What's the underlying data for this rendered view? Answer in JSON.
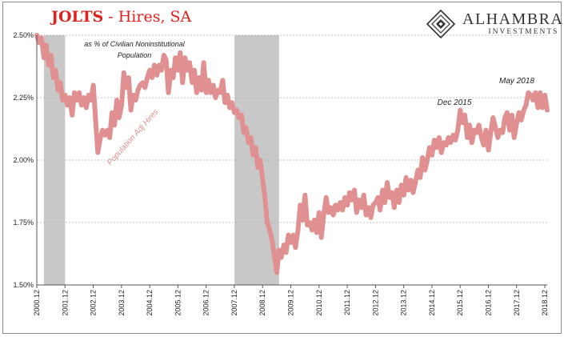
{
  "header": {
    "title_main": "JOLTS",
    "title_rest": " - Hires, SA",
    "brand_name": "ALHAMBRA",
    "brand_sub": "INVESTMENTS"
  },
  "colors": {
    "series": "#e09090",
    "recession": "#c8c8c8",
    "title_red": "#e0201b",
    "grid": "#b0b0b0"
  },
  "chart_data": {
    "type": "line",
    "subtitle": "as % of Civilian Noninstitutional Population",
    "subtitle_lines": [
      "as % of Civilian Noninstitutional",
      "Population"
    ],
    "y_ticks": [
      "2.50%",
      "2.25%",
      "2.00%",
      "1.75%",
      "1.50%"
    ],
    "y_tick_values": [
      2.5,
      2.25,
      2.0,
      1.75,
      1.5
    ],
    "ylim": [
      1.5,
      2.5
    ],
    "xlim": [
      2000.917,
      2019.0
    ],
    "x_ticks": [
      "2000.12",
      "2001.12",
      "2002.12",
      "2003.12",
      "2004.12",
      "2005.12",
      "2006.12",
      "2007.12",
      "2008.12",
      "2009.12",
      "2010.12",
      "2011.12",
      "2012.12",
      "2013.12",
      "2014.12",
      "2015.12",
      "2016.12",
      "2017.12",
      "2018.12"
    ],
    "grid": "horizontal dashed",
    "annotations": [
      "Population Adj Hires",
      "Dec 2015",
      "May 2018"
    ],
    "recessions": [
      [
        2001.17,
        2001.92
      ],
      [
        2007.92,
        2009.5
      ]
    ],
    "series": [
      {
        "name": "Population Adj Hires",
        "points": [
          [
            2000.92,
            2.5
          ],
          [
            2001.0,
            2.47
          ],
          [
            2001.08,
            2.49
          ],
          [
            2001.17,
            2.41
          ],
          [
            2001.25,
            2.46
          ],
          [
            2001.33,
            2.38
          ],
          [
            2001.42,
            2.42
          ],
          [
            2001.5,
            2.33
          ],
          [
            2001.58,
            2.36
          ],
          [
            2001.67,
            2.28
          ],
          [
            2001.75,
            2.31
          ],
          [
            2001.83,
            2.24
          ],
          [
            2001.92,
            2.26
          ],
          [
            2002.0,
            2.22
          ],
          [
            2002.08,
            2.25
          ],
          [
            2002.17,
            2.18
          ],
          [
            2002.25,
            2.27
          ],
          [
            2002.33,
            2.24
          ],
          [
            2002.42,
            2.27
          ],
          [
            2002.5,
            2.22
          ],
          [
            2002.58,
            2.25
          ],
          [
            2002.67,
            2.21
          ],
          [
            2002.75,
            2.26
          ],
          [
            2002.83,
            2.24
          ],
          [
            2002.92,
            2.3
          ],
          [
            2003.0,
            2.16
          ],
          [
            2003.08,
            2.03
          ],
          [
            2003.17,
            2.09
          ],
          [
            2003.25,
            2.12
          ],
          [
            2003.33,
            2.1
          ],
          [
            2003.42,
            2.12
          ],
          [
            2003.5,
            2.09
          ],
          [
            2003.58,
            2.19
          ],
          [
            2003.67,
            2.14
          ],
          [
            2003.75,
            2.24
          ],
          [
            2003.83,
            2.17
          ],
          [
            2003.92,
            2.22
          ],
          [
            2004.0,
            2.35
          ],
          [
            2004.08,
            2.29
          ],
          [
            2004.17,
            2.33
          ],
          [
            2004.25,
            2.2
          ],
          [
            2004.33,
            2.26
          ],
          [
            2004.42,
            2.24
          ],
          [
            2004.5,
            2.28
          ],
          [
            2004.58,
            2.3
          ],
          [
            2004.67,
            2.31
          ],
          [
            2004.75,
            2.29
          ],
          [
            2004.83,
            2.33
          ],
          [
            2004.92,
            2.36
          ],
          [
            2005.0,
            2.33
          ],
          [
            2005.08,
            2.38
          ],
          [
            2005.17,
            2.34
          ],
          [
            2005.25,
            2.38
          ],
          [
            2005.33,
            2.36
          ],
          [
            2005.42,
            2.42
          ],
          [
            2005.5,
            2.4
          ],
          [
            2005.58,
            2.27
          ],
          [
            2005.67,
            2.36
          ],
          [
            2005.75,
            2.33
          ],
          [
            2005.83,
            2.41
          ],
          [
            2005.92,
            2.36
          ],
          [
            2006.0,
            2.43
          ],
          [
            2006.08,
            2.31
          ],
          [
            2006.17,
            2.41
          ],
          [
            2006.25,
            2.36
          ],
          [
            2006.33,
            2.39
          ],
          [
            2006.42,
            2.31
          ],
          [
            2006.5,
            2.36
          ],
          [
            2006.58,
            2.27
          ],
          [
            2006.67,
            2.33
          ],
          [
            2006.75,
            2.28
          ],
          [
            2006.83,
            2.39
          ],
          [
            2006.92,
            2.27
          ],
          [
            2007.0,
            2.32
          ],
          [
            2007.08,
            2.27
          ],
          [
            2007.17,
            2.3
          ],
          [
            2007.25,
            2.25
          ],
          [
            2007.33,
            2.28
          ],
          [
            2007.42,
            2.27
          ],
          [
            2007.5,
            2.32
          ],
          [
            2007.58,
            2.23
          ],
          [
            2007.67,
            2.26
          ],
          [
            2007.75,
            2.21
          ],
          [
            2007.83,
            2.23
          ],
          [
            2007.92,
            2.19
          ],
          [
            2008.0,
            2.2
          ],
          [
            2008.08,
            2.17
          ],
          [
            2008.17,
            2.18
          ],
          [
            2008.25,
            2.11
          ],
          [
            2008.33,
            2.13
          ],
          [
            2008.42,
            2.07
          ],
          [
            2008.5,
            2.09
          ],
          [
            2008.58,
            2.02
          ],
          [
            2008.67,
            2.05
          ],
          [
            2008.75,
            1.97
          ],
          [
            2008.83,
            2.0
          ],
          [
            2008.92,
            1.92
          ],
          [
            2009.0,
            1.85
          ],
          [
            2009.08,
            1.75
          ],
          [
            2009.17,
            1.72
          ],
          [
            2009.25,
            1.68
          ],
          [
            2009.33,
            1.62
          ],
          [
            2009.42,
            1.55
          ],
          [
            2009.5,
            1.64
          ],
          [
            2009.58,
            1.61
          ],
          [
            2009.67,
            1.66
          ],
          [
            2009.75,
            1.63
          ],
          [
            2009.83,
            1.7
          ],
          [
            2009.92,
            1.67
          ],
          [
            2010.0,
            1.7
          ],
          [
            2010.08,
            1.65
          ],
          [
            2010.17,
            1.72
          ],
          [
            2010.25,
            1.82
          ],
          [
            2010.33,
            1.76
          ],
          [
            2010.42,
            1.86
          ],
          [
            2010.5,
            1.74
          ],
          [
            2010.58,
            1.75
          ],
          [
            2010.67,
            1.72
          ],
          [
            2010.75,
            1.76
          ],
          [
            2010.83,
            1.71
          ],
          [
            2010.92,
            1.79
          ],
          [
            2011.0,
            1.69
          ],
          [
            2011.08,
            1.78
          ],
          [
            2011.17,
            1.85
          ],
          [
            2011.25,
            1.79
          ],
          [
            2011.33,
            1.81
          ],
          [
            2011.42,
            1.78
          ],
          [
            2011.5,
            1.82
          ],
          [
            2011.58,
            1.8
          ],
          [
            2011.67,
            1.83
          ],
          [
            2011.75,
            1.8
          ],
          [
            2011.83,
            1.85
          ],
          [
            2011.92,
            1.82
          ],
          [
            2012.0,
            1.87
          ],
          [
            2012.08,
            1.84
          ],
          [
            2012.17,
            1.88
          ],
          [
            2012.25,
            1.79
          ],
          [
            2012.33,
            1.84
          ],
          [
            2012.42,
            1.81
          ],
          [
            2012.5,
            1.86
          ],
          [
            2012.58,
            1.78
          ],
          [
            2012.67,
            1.81
          ],
          [
            2012.75,
            1.77
          ],
          [
            2012.83,
            1.82
          ],
          [
            2012.92,
            1.83
          ],
          [
            2013.0,
            1.85
          ],
          [
            2013.08,
            1.8
          ],
          [
            2013.17,
            1.88
          ],
          [
            2013.25,
            1.83
          ],
          [
            2013.33,
            1.91
          ],
          [
            2013.42,
            1.85
          ],
          [
            2013.5,
            1.87
          ],
          [
            2013.58,
            1.81
          ],
          [
            2013.67,
            1.88
          ],
          [
            2013.75,
            1.83
          ],
          [
            2013.83,
            1.9
          ],
          [
            2013.92,
            1.86
          ],
          [
            2014.0,
            1.93
          ],
          [
            2014.08,
            1.88
          ],
          [
            2014.17,
            1.92
          ],
          [
            2014.25,
            1.87
          ],
          [
            2014.33,
            1.91
          ],
          [
            2014.42,
            1.96
          ],
          [
            2014.5,
            1.93
          ],
          [
            2014.58,
            2.01
          ],
          [
            2014.67,
            1.96
          ],
          [
            2014.75,
            2.0
          ],
          [
            2014.83,
            2.05
          ],
          [
            2014.92,
            2.02
          ],
          [
            2015.0,
            2.08
          ],
          [
            2015.08,
            2.05
          ],
          [
            2015.17,
            2.09
          ],
          [
            2015.25,
            2.03
          ],
          [
            2015.33,
            2.07
          ],
          [
            2015.42,
            2.06
          ],
          [
            2015.5,
            2.09
          ],
          [
            2015.58,
            2.07
          ],
          [
            2015.67,
            2.1
          ],
          [
            2015.75,
            2.08
          ],
          [
            2015.83,
            2.12
          ],
          [
            2015.92,
            2.2
          ],
          [
            2016.0,
            2.15
          ],
          [
            2016.08,
            2.18
          ],
          [
            2016.17,
            2.09
          ],
          [
            2016.25,
            2.14
          ],
          [
            2016.33,
            2.07
          ],
          [
            2016.42,
            2.12
          ],
          [
            2016.5,
            2.11
          ],
          [
            2016.58,
            2.14
          ],
          [
            2016.67,
            2.09
          ],
          [
            2016.75,
            2.06
          ],
          [
            2016.83,
            2.12
          ],
          [
            2016.92,
            2.04
          ],
          [
            2017.0,
            2.11
          ],
          [
            2017.08,
            2.17
          ],
          [
            2017.17,
            2.13
          ],
          [
            2017.25,
            2.09
          ],
          [
            2017.33,
            2.12
          ],
          [
            2017.42,
            2.11
          ],
          [
            2017.5,
            2.17
          ],
          [
            2017.58,
            2.19
          ],
          [
            2017.67,
            2.12
          ],
          [
            2017.75,
            2.18
          ],
          [
            2017.83,
            2.09
          ],
          [
            2017.92,
            2.15
          ],
          [
            2018.0,
            2.19
          ],
          [
            2018.08,
            2.16
          ],
          [
            2018.17,
            2.2
          ],
          [
            2018.25,
            2.22
          ],
          [
            2018.33,
            2.27
          ],
          [
            2018.42,
            2.26
          ],
          [
            2018.5,
            2.24
          ],
          [
            2018.58,
            2.27
          ],
          [
            2018.67,
            2.21
          ],
          [
            2018.75,
            2.27
          ],
          [
            2018.83,
            2.21
          ],
          [
            2018.92,
            2.26
          ],
          [
            2019.0,
            2.2
          ]
        ]
      }
    ]
  }
}
